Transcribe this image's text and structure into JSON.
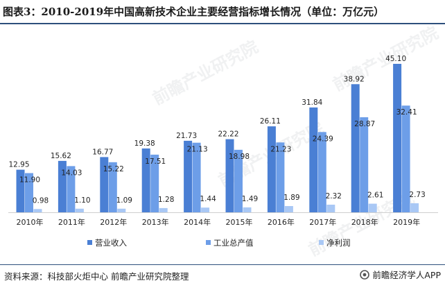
{
  "title": "图表3：2010-2019年中国高新技术企业主要经营指标增长情况（单位：万亿元）",
  "source": "资料来源：科技部火炬中心 前瞻产业研究院整理",
  "brand": "前瞻经济学人APP",
  "watermark": "前瞻产业研究院",
  "colors": {
    "series": [
      "#4a7fd4",
      "#6d9ee8",
      "#a9c8f5"
    ],
    "rule": "#2d4f7c"
  },
  "chart_data": {
    "type": "bar",
    "categories": [
      "2010年",
      "2011年",
      "2012年",
      "2013年",
      "2014年",
      "2015年",
      "2016年",
      "2017年",
      "2018年",
      "2019年"
    ],
    "series": [
      {
        "name": "营业收入",
        "values": [
          12.95,
          15.62,
          16.77,
          19.38,
          21.73,
          22.22,
          26.11,
          31.84,
          38.92,
          45.1
        ],
        "labels": [
          "12.95",
          "15.62",
          "16.77",
          "19.38",
          "21.73",
          "22.22",
          "26.11",
          "31.84",
          "38.92",
          "45.10"
        ]
      },
      {
        "name": "工业总产值",
        "values": [
          11.9,
          14.03,
          15.22,
          17.51,
          21.13,
          18.98,
          21.23,
          24.39,
          28.87,
          32.41
        ],
        "labels": [
          "11.90",
          "14.03",
          "15.22",
          "17.51",
          "21.13",
          "18.98",
          "21.23",
          "24.39",
          "28.87",
          "32.41"
        ]
      },
      {
        "name": "净利润",
        "values": [
          0.98,
          1.1,
          1.09,
          1.28,
          1.44,
          1.49,
          1.89,
          2.32,
          2.61,
          2.73
        ],
        "labels": [
          "0.98",
          "1.10",
          "1.09",
          "1.28",
          "1.44",
          "1.49",
          "1.89",
          "2.32",
          "2.61",
          "2.73"
        ]
      }
    ],
    "ylim": [
      0,
      50
    ],
    "grid": false,
    "legend": "bottom"
  }
}
